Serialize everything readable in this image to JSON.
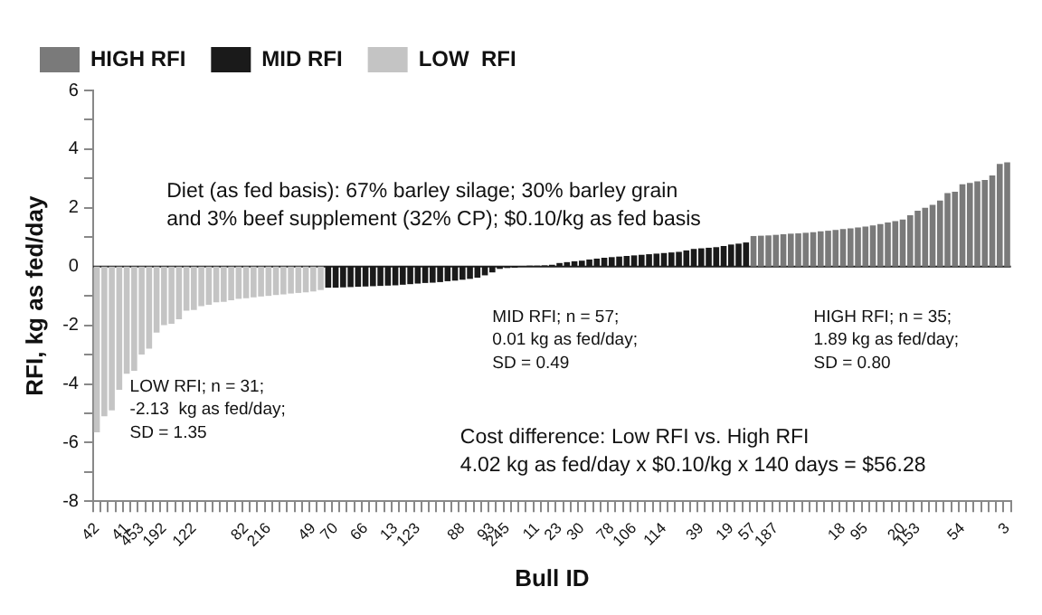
{
  "chart_data": {
    "type": "bar",
    "xlabel": "Bull ID",
    "ylabel": "RFI, kg as fed/day",
    "categories": [
      "42",
      null,
      null,
      null,
      "41",
      null,
      "453",
      null,
      null,
      "192",
      null,
      null,
      null,
      "122",
      null,
      null,
      null,
      null,
      null,
      null,
      "82",
      null,
      null,
      "216",
      null,
      null,
      null,
      null,
      null,
      "49",
      null,
      null,
      "70",
      null,
      null,
      null,
      "66",
      null,
      null,
      null,
      "13",
      null,
      null,
      "123",
      null,
      null,
      null,
      null,
      null,
      "88",
      null,
      null,
      null,
      "93",
      null,
      "245",
      null,
      null,
      null,
      "11",
      null,
      null,
      "23",
      null,
      null,
      "30",
      null,
      null,
      null,
      "78",
      null,
      null,
      "106",
      null,
      null,
      null,
      "114",
      null,
      null,
      null,
      null,
      "39",
      null,
      null,
      null,
      "19",
      null,
      null,
      "57",
      null,
      null,
      "187",
      null,
      null,
      null,
      null,
      null,
      null,
      null,
      null,
      "18",
      null,
      null,
      "95",
      null,
      null,
      null,
      null,
      "20",
      null,
      "153",
      null,
      null,
      null,
      null,
      null,
      "54",
      null,
      null,
      null,
      null,
      null,
      "3"
    ],
    "series": [
      {
        "name": "HIGH RFI",
        "color": "#7a7a7a",
        "values": [
          null,
          null,
          null,
          null,
          null,
          null,
          null,
          null,
          null,
          null,
          null,
          null,
          null,
          null,
          null,
          null,
          null,
          null,
          null,
          null,
          null,
          null,
          null,
          null,
          null,
          null,
          null,
          null,
          null,
          null,
          null,
          null,
          null,
          null,
          null,
          null,
          null,
          null,
          null,
          null,
          null,
          null,
          null,
          null,
          null,
          null,
          null,
          null,
          null,
          null,
          null,
          null,
          null,
          null,
          null,
          null,
          null,
          null,
          null,
          null,
          null,
          null,
          null,
          null,
          null,
          null,
          null,
          null,
          null,
          null,
          null,
          null,
          null,
          null,
          null,
          null,
          null,
          null,
          null,
          null,
          null,
          null,
          null,
          null,
          null,
          null,
          null,
          null,
          1.04,
          1.05,
          1.06,
          1.08,
          1.1,
          1.12,
          1.13,
          1.15,
          1.17,
          1.2,
          1.22,
          1.25,
          1.28,
          1.3,
          1.33,
          1.36,
          1.4,
          1.45,
          1.5,
          1.55,
          1.6,
          1.75,
          1.9,
          2.0,
          2.1,
          2.25,
          2.5,
          2.55,
          2.8,
          2.85,
          2.9,
          2.95,
          3.1,
          3.5,
          3.55
        ]
      },
      {
        "name": "MID RFI",
        "color": "#1a1a1a",
        "values": [
          null,
          null,
          null,
          null,
          null,
          null,
          null,
          null,
          null,
          null,
          null,
          null,
          null,
          null,
          null,
          null,
          null,
          null,
          null,
          null,
          null,
          null,
          null,
          null,
          null,
          null,
          null,
          null,
          null,
          null,
          null,
          -0.72,
          -0.72,
          -0.71,
          -0.7,
          -0.69,
          -0.68,
          -0.67,
          -0.66,
          -0.65,
          -0.64,
          -0.62,
          -0.6,
          -0.58,
          -0.56,
          -0.55,
          -0.53,
          -0.5,
          -0.48,
          -0.45,
          -0.42,
          -0.38,
          -0.3,
          -0.2,
          -0.08,
          -0.05,
          -0.04,
          0.01,
          0.03,
          0.03,
          0.04,
          0.06,
          0.12,
          0.15,
          0.18,
          0.2,
          0.24,
          0.27,
          0.3,
          0.32,
          0.34,
          0.36,
          0.38,
          0.4,
          0.42,
          0.44,
          0.46,
          0.48,
          0.5,
          0.55,
          0.6,
          0.62,
          0.64,
          0.66,
          0.7,
          0.75,
          0.78,
          0.82,
          null,
          null,
          null,
          null,
          null,
          null,
          null,
          null,
          null,
          null,
          null,
          null,
          null,
          null,
          null,
          null,
          null,
          null,
          null,
          null,
          null,
          null,
          null,
          null,
          null,
          null,
          null,
          null,
          null,
          null,
          null,
          null,
          null,
          null,
          null
        ]
      },
      {
        "name": "LOW  RFI",
        "color": "#c4c4c4",
        "values": [
          -5.65,
          -5.1,
          -4.9,
          -4.2,
          -3.65,
          -3.55,
          -3.0,
          -2.8,
          -2.25,
          -2.0,
          -1.95,
          -1.8,
          -1.5,
          -1.48,
          -1.35,
          -1.3,
          -1.22,
          -1.2,
          -1.15,
          -1.1,
          -1.08,
          -1.05,
          -1.02,
          -1.0,
          -0.97,
          -0.95,
          -0.92,
          -0.9,
          -0.88,
          -0.85,
          -0.8,
          null,
          null,
          null,
          null,
          null,
          null,
          null,
          null,
          null,
          null,
          null,
          null,
          null,
          null,
          null,
          null,
          null,
          null,
          null,
          null,
          null,
          null,
          null,
          null,
          null,
          null,
          null,
          null,
          null,
          null,
          null,
          null,
          null,
          null,
          null,
          null,
          null,
          null,
          null,
          null,
          null,
          null,
          null,
          null,
          null,
          null,
          null,
          null,
          null,
          null,
          null,
          null,
          null,
          null,
          null,
          null,
          null,
          null,
          null,
          null,
          null,
          null,
          null,
          null,
          null,
          null,
          null,
          null,
          null,
          null,
          null,
          null,
          null,
          null,
          null,
          null,
          null,
          null,
          null,
          null,
          null,
          null,
          null,
          null,
          null,
          null,
          null,
          null,
          null,
          null,
          null,
          null
        ]
      }
    ],
    "ylim": [
      -8,
      6
    ],
    "yticks": [
      -8,
      {
        "value": -7,
        "label": null
      },
      -6,
      {
        "value": -5,
        "label": null
      },
      -4,
      {
        "value": -3,
        "label": null
      },
      -2,
      {
        "value": -1,
        "label": null
      },
      0,
      {
        "value": 1,
        "label": null
      },
      2,
      {
        "value": 3,
        "label": null
      },
      4,
      {
        "value": 5,
        "label": null
      },
      6
    ],
    "legend": "top",
    "annotations": [
      "Diet (as fed basis): 67% barley silage; 30% barley grain\nand 3% beef supplement (32% CP); $0.10/kg as fed basis",
      "LOW RFI; n = 31;\n-2.13  kg as fed/day;\nSD = 1.35",
      "MID RFI; n = 57;\n0.01 kg as fed/day;\nSD = 0.49",
      "HIGH RFI; n = 35;\n1.89 kg as fed/day;\nSD = 0.80",
      "Cost difference: Low RFI vs. High RFI\n4.02 kg as fed/day x $0.10/kg x 140 days = $56.28"
    ]
  }
}
